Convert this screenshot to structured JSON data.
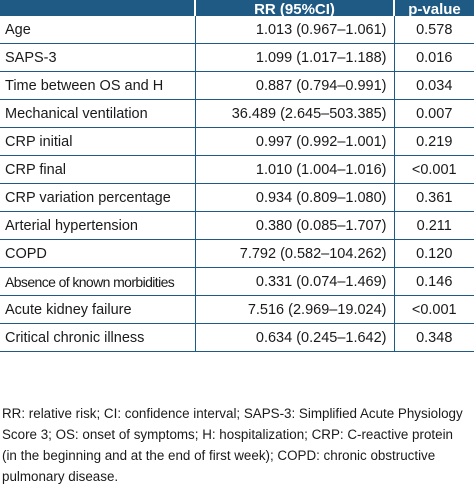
{
  "table": {
    "headers": [
      "",
      "RR (95%CI)",
      "p-value"
    ],
    "rows": [
      {
        "variable": "Age",
        "rr": "1.013 (0.967–1.061)",
        "p": "0.578"
      },
      {
        "variable": "SAPS-3",
        "rr": "1.099 (1.017–1.188)",
        "p": "0.016"
      },
      {
        "variable": "Time between OS and H",
        "rr": "0.887 (0.794–0.991)",
        "p": "0.034"
      },
      {
        "variable": "Mechanical ventilation",
        "rr": "36.489 (2.645–503.385)",
        "p": "0.007"
      },
      {
        "variable": "CRP initial",
        "rr": "0.997 (0.992–1.001)",
        "p": "0.219"
      },
      {
        "variable": "CRP final",
        "rr": "1.010 (1.004–1.016)",
        "p": "<0.001"
      },
      {
        "variable": "CRP variation percentage",
        "rr": "0.934 (0.809–1.080)",
        "p": "0.361"
      },
      {
        "variable": "Arterial hypertension",
        "rr": "0.380 (0.085–1.707)",
        "p": "0.211"
      },
      {
        "variable": "COPD",
        "rr": "7.792 (0.582–104.262)",
        "p": "0.120"
      },
      {
        "variable": "Absence of known morbidities",
        "rr": "0.331 (0.074–1.469)",
        "p": "0.146"
      },
      {
        "variable": "Acute kidney failure",
        "rr": "7.516 (2.969–19.024)",
        "p": "<0.001"
      },
      {
        "variable": "Critical chronic illness",
        "rr": "0.634 (0.245–1.642)",
        "p": "0.348"
      }
    ]
  },
  "footnote": {
    "lines": [
      "RR: relative risk; CI: confidence interval; SAPS-3: Simplified Acute Physiology",
      "Score 3; OS: onset of symptoms; H: hospitalization; CRP: C-reactive protein",
      "(in the beginning and at the end of first week); COPD: chronic obstructive",
      "pulmonary disease."
    ]
  },
  "colors": {
    "header_bg": "#1f5a84",
    "rule": "#1f5a84"
  }
}
